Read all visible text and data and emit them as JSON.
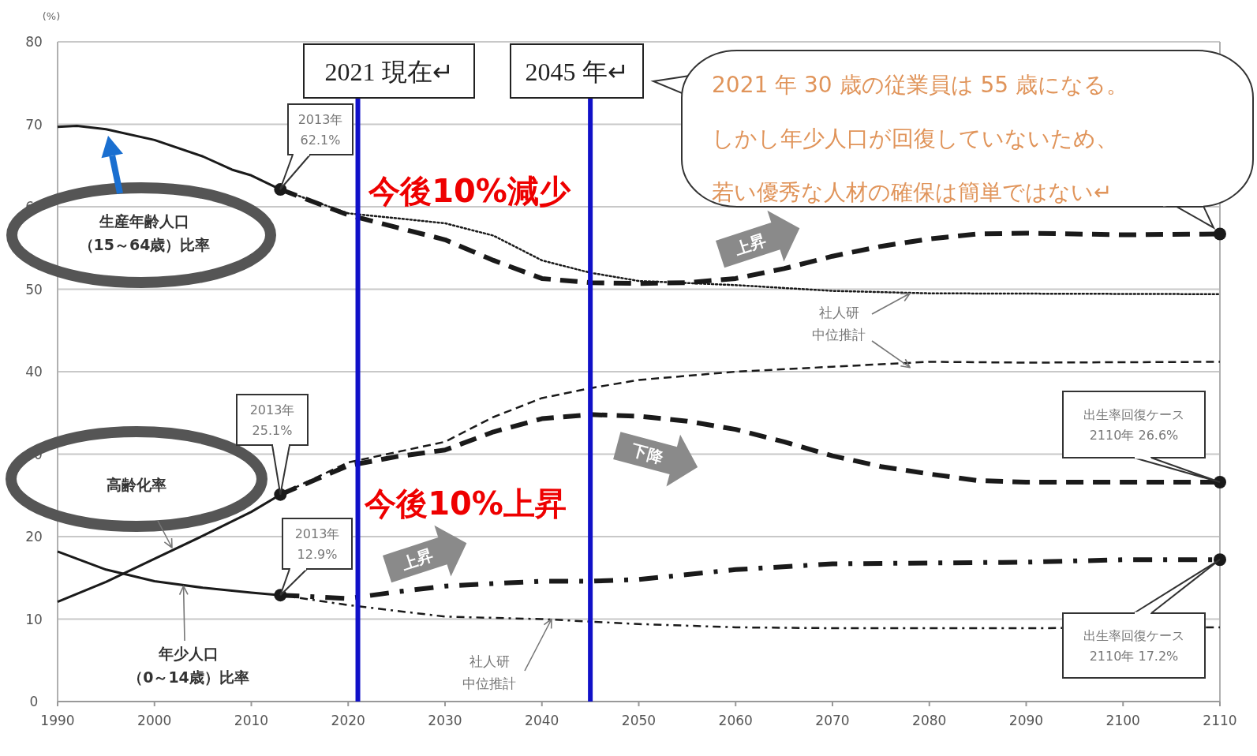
{
  "chart_data": {
    "type": "line",
    "ylabel": "(%)",
    "xlim": [
      1990,
      2110
    ],
    "xticks": [
      1990,
      2000,
      2010,
      2020,
      2030,
      2040,
      2050,
      2060,
      2070,
      2080,
      2090,
      2100,
      2110
    ],
    "ylim": [
      0,
      80
    ],
    "yticks": [
      0,
      10,
      20,
      30,
      40,
      50,
      60,
      70,
      80
    ],
    "grid": "y",
    "marker": "none",
    "series": [
      {
        "color": "#1a1a1a",
        "line_style": "solid",
        "x": [
          1990,
          1992,
          1995,
          2000,
          2005,
          2008,
          2010,
          2013
        ],
        "values": [
          69.7,
          69.8,
          69.4,
          68.1,
          66.1,
          64.5,
          63.8,
          62.1
        ]
      },
      {
        "color": "#1a1a1a",
        "line_style": "dashed",
        "x": [
          2013,
          2020,
          2025,
          2030,
          2035,
          2040,
          2045,
          2050,
          2055,
          2060,
          2065,
          2070,
          2075,
          2080,
          2085,
          2090,
          2095,
          2100,
          2110
        ],
        "values": [
          62.1,
          59.0,
          57.5,
          56.0,
          53.5,
          51.3,
          50.8,
          50.7,
          50.8,
          51.3,
          52.5,
          54.0,
          55.2,
          56.1,
          56.7,
          56.8,
          56.7,
          56.6,
          56.7
        ]
      },
      {
        "color": "#1a1a1a",
        "line_style": "dotted",
        "x": [
          2013,
          2020,
          2030,
          2035,
          2040,
          2045,
          2050,
          2060,
          2070,
          2080,
          2110
        ],
        "values": [
          62.1,
          59.2,
          58.0,
          56.5,
          53.5,
          52.0,
          51.0,
          50.5,
          49.8,
          49.5,
          49.4
        ]
      },
      {
        "color": "#1a1a1a",
        "line_style": "solid",
        "x": [
          1990,
          1995,
          2000,
          2005,
          2010,
          2013
        ],
        "values": [
          12.1,
          14.5,
          17.3,
          20.1,
          23.0,
          25.1
        ]
      },
      {
        "color": "#1a1a1a",
        "line_style": "dashed",
        "x": [
          2013,
          2020,
          2025,
          2030,
          2035,
          2040,
          2045,
          2050,
          2055,
          2060,
          2065,
          2070,
          2075,
          2080,
          2085,
          2090,
          2100,
          2110
        ],
        "values": [
          25.1,
          28.6,
          29.7,
          30.5,
          32.7,
          34.3,
          34.8,
          34.6,
          34.0,
          33.0,
          31.5,
          29.8,
          28.5,
          27.6,
          26.8,
          26.6,
          26.6,
          26.6
        ]
      },
      {
        "color": "#1a1a1a",
        "line_style": "dashed",
        "x": [
          2013,
          2020,
          2030,
          2035,
          2040,
          2045,
          2050,
          2060,
          2070,
          2080,
          2090,
          2110
        ],
        "values": [
          25.1,
          29.0,
          31.5,
          34.5,
          36.8,
          38.0,
          39.0,
          40.0,
          40.6,
          41.2,
          41.1,
          41.2
        ]
      },
      {
        "color": "#1a1a1a",
        "line_style": "solid",
        "x": [
          1990,
          1995,
          2000,
          2005,
          2010,
          2013
        ],
        "values": [
          18.2,
          16.0,
          14.6,
          13.8,
          13.2,
          12.9
        ]
      },
      {
        "color": "#1a1a1a",
        "line_style": "dashdot",
        "x": [
          2013,
          2020,
          2025,
          2030,
          2040,
          2045,
          2050,
          2060,
          2070,
          2080,
          2090,
          2100,
          2110
        ],
        "values": [
          12.9,
          12.5,
          13.3,
          14.0,
          14.6,
          14.6,
          14.8,
          16.0,
          16.7,
          16.8,
          16.9,
          17.2,
          17.2
        ]
      },
      {
        "color": "#1a1a1a",
        "line_style": "dashdot",
        "x": [
          2013,
          2020,
          2030,
          2040,
          2050,
          2060,
          2070,
          2080,
          2090,
          2110
        ],
        "values": [
          12.9,
          11.7,
          10.3,
          10.0,
          9.4,
          9.0,
          8.9,
          8.9,
          8.9,
          9.0
        ]
      },
      {
        "type": "scatter",
        "marker": "circle",
        "color": "#1a1a1a",
        "x": [
          2013,
          2013,
          2013,
          2110,
          2110,
          2110
        ],
        "values": [
          62.1,
          25.1,
          12.9,
          56.7,
          26.6,
          17.2
        ]
      }
    ],
    "ref_lines": [
      {
        "axis": "x",
        "value": 2021,
        "label": "2021 現在↵",
        "color": "#1010c8"
      },
      {
        "axis": "x",
        "value": 2045,
        "label": "2045 年↵",
        "color": "#1010c8"
      }
    ],
    "annotations": [
      "2013年\n62.1%",
      {
        "text": "2013年\n25.1%",
        "x": 2013,
        "y": 25.1
      },
      {
        "text": "2013年\n12.9%",
        "x": 2013,
        "y": 12.9
      },
      {
        "text": "出生率回復ケース\n2110年 26.6%",
        "x": 2110,
        "y": 26.6
      },
      "出生率回復ケース\n2110年 17.2%",
      "生産年齢人口（15～64歳）比率",
      "高齢化率",
      {
        "text": "年少人口（0～14歳）比率",
        "x": 2003,
        "y": 14.0
      },
      {
        "text": "社人研中位推計",
        "x": 2041,
        "y": 10.0
      },
      {
        "text": "社人研中位推計",
        "x": 2078,
        "y": 49.5
      },
      "今後10%減少",
      "今後10%上昇",
      "2021 年 30 歳の従業員は 55 歳になる。しかし年少人口が回復していないため、若い優秀な人材の確保は簡単ではない↵",
      "上昇",
      "下降",
      "上昇"
    ]
  }
}
